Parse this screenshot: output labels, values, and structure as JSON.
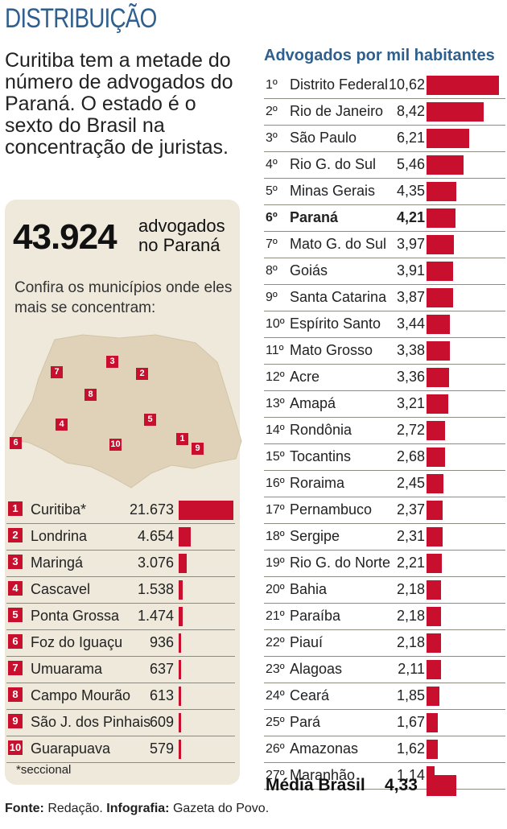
{
  "header": {
    "section": "DISTRIBUIÇÃO",
    "intro": "Curitiba tem a metade do número de advogados do Paraná. O estado é o sexto do Brasil na concentração de juristas."
  },
  "summary": {
    "total": "43.924",
    "total_label_1": "advogados",
    "total_label_2": "no Paraná",
    "prompt": "Confira os municípios onde eles mais se concentram:"
  },
  "colors": {
    "accent": "#c8102e",
    "title_blue": "#2f5f8e",
    "panel_bg": "#efe9dc",
    "map_fill": "#dfd2b8"
  },
  "chart_data": [
    {
      "type": "bar",
      "orientation": "horizontal",
      "categories": [
        "Curitiba*",
        "Londrina",
        "Maringá",
        "Cascavel",
        "Ponta Grossa",
        "Foz do Iguaçu",
        "Umuarama",
        "Campo Mourão",
        "São J. dos Pinhais",
        "Guarapuava"
      ],
      "ranks": [
        "1",
        "2",
        "3",
        "4",
        "5",
        "6",
        "7",
        "8",
        "9",
        "10"
      ],
      "value_labels": [
        "21.673",
        "4.654",
        "3.076",
        "1.538",
        "1.474",
        "936",
        "637",
        "613",
        "609",
        "579"
      ],
      "values": [
        21673,
        4654,
        3076,
        1538,
        1474,
        936,
        637,
        613,
        609,
        579
      ],
      "note": "*seccional"
    },
    {
      "type": "bar",
      "orientation": "horizontal",
      "title": "Advogados por mil habitantes",
      "ranks": [
        "1º",
        "2º",
        "3º",
        "4º",
        "5º",
        "6º",
        "7º",
        "8º",
        "9º",
        "10º",
        "11º",
        "12º",
        "13º",
        "14º",
        "15º",
        "16º",
        "17º",
        "18º",
        "19º",
        "20º",
        "21º",
        "22º",
        "23º",
        "24º",
        "25º",
        "26º",
        "27º"
      ],
      "categories": [
        "Distrito Federal",
        "Rio de Janeiro",
        "São Paulo",
        "Rio G. do Sul",
        "Minas Gerais",
        "Paraná",
        "Mato G. do Sul",
        "Goiás",
        "Santa Catarina",
        "Espírito Santo",
        "Mato Grosso",
        "Acre",
        "Amapá",
        "Rondônia",
        "Tocantins",
        "Roraima",
        "Pernambuco",
        "Sergipe",
        "Rio G. do Norte",
        "Bahia",
        "Paraíba",
        "Piauí",
        "Alagoas",
        "Ceará",
        "Pará",
        "Amazonas",
        "Maranhão"
      ],
      "value_labels": [
        "10,62",
        "8,42",
        "6,21",
        "5,46",
        "4,35",
        "4,21",
        "3,97",
        "3,91",
        "3,87",
        "3,44",
        "3,38",
        "3,36",
        "3,21",
        "2,72",
        "2,68",
        "2,45",
        "2,37",
        "2,31",
        "2,21",
        "2,18",
        "2,18",
        "2,18",
        "2,11",
        "1,85",
        "1,67",
        "1,62",
        "1,14"
      ],
      "values": [
        10.62,
        8.42,
        6.21,
        5.46,
        4.35,
        4.21,
        3.97,
        3.91,
        3.87,
        3.44,
        3.38,
        3.36,
        3.21,
        2.72,
        2.68,
        2.45,
        2.37,
        2.31,
        2.21,
        2.18,
        2.18,
        2.18,
        2.11,
        1.85,
        1.67,
        1.62,
        1.14
      ],
      "highlight": "Paraná",
      "average_label": "Média Brasil",
      "average_value_label": "4,33",
      "average_value": 4.33
    }
  ],
  "footer": {
    "fonte_label": "Fonte:",
    "fonte_value": "Redação.",
    "info_label": "Infografia:",
    "info_value": "Gazeta do Povo."
  }
}
